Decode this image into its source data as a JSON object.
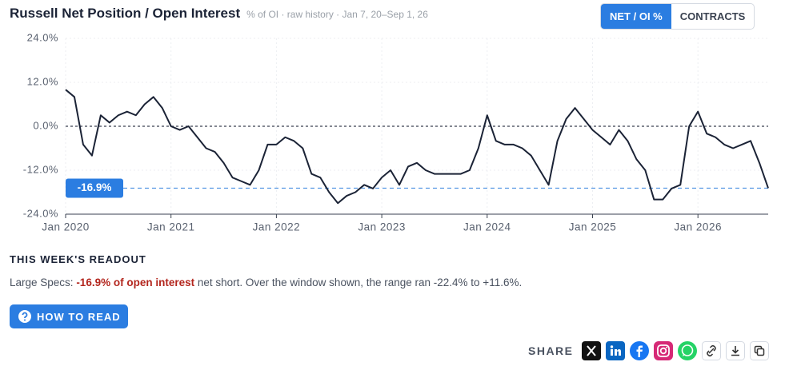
{
  "header": {
    "title": "Russell Net Position / Open Interest",
    "subtitle": "% of OI · raw history · Jan 7, 20–Sep 1, 26",
    "toggles": [
      "NET / OI %",
      "CONTRACTS"
    ]
  },
  "chart_data": {
    "type": "line",
    "color": "#1b2336",
    "grid": true,
    "x": [
      "2020-01",
      "2020-02",
      "2020-03",
      "2020-04",
      "2020-05",
      "2020-06",
      "2020-07",
      "2020-08",
      "2020-09",
      "2020-10",
      "2020-11",
      "2020-12",
      "2021-01",
      "2021-02",
      "2021-03",
      "2021-04",
      "2021-05",
      "2021-06",
      "2021-07",
      "2021-08",
      "2021-09",
      "2021-10",
      "2021-11",
      "2021-12",
      "2022-01",
      "2022-02",
      "2022-03",
      "2022-04",
      "2022-05",
      "2022-06",
      "2022-07",
      "2022-08",
      "2022-09",
      "2022-10",
      "2022-11",
      "2022-12",
      "2023-01",
      "2023-02",
      "2023-03",
      "2023-04",
      "2023-05",
      "2023-06",
      "2023-07",
      "2023-08",
      "2023-09",
      "2023-10",
      "2023-11",
      "2023-12",
      "2024-01",
      "2024-02",
      "2024-03",
      "2024-04",
      "2024-05",
      "2024-06",
      "2024-07",
      "2024-08",
      "2024-09",
      "2024-10",
      "2024-11",
      "2024-12",
      "2025-01",
      "2025-02",
      "2025-03",
      "2025-04",
      "2025-05",
      "2025-06",
      "2025-07",
      "2025-08",
      "2025-09",
      "2025-10",
      "2025-11",
      "2025-12",
      "2026-01",
      "2026-02",
      "2026-03",
      "2026-04",
      "2026-05",
      "2026-06",
      "2026-07",
      "2026-08",
      "2026-09"
    ],
    "values": [
      10,
      8,
      -5,
      -8,
      3,
      1,
      3,
      4,
      3,
      6,
      8,
      5,
      0,
      -1,
      0,
      -3,
      -6,
      -7,
      -10,
      -14,
      -15,
      -16,
      -12,
      -5,
      -5,
      -3,
      -4,
      -6,
      -13,
      -14,
      -18,
      -21,
      -19,
      -18,
      -16,
      -17,
      -14,
      -12,
      -16,
      -11,
      -10,
      -12,
      -13,
      -13,
      -13,
      -13,
      -12,
      -6,
      3,
      -4,
      -5,
      -5,
      -6,
      -8,
      -12,
      -16,
      -4,
      2,
      5,
      2,
      -1,
      -3,
      -5,
      -1,
      -4,
      -9,
      -12,
      -20,
      -20,
      -17,
      -16,
      0,
      4,
      -2,
      -3,
      -5,
      -6,
      -5,
      -4,
      -10,
      -16.9
    ],
    "xlim": [
      "2020-01",
      "2026-09"
    ],
    "xticks": [
      {
        "value": "2020-01",
        "label": "Jan 2020"
      },
      {
        "value": "2021-01",
        "label": "Jan 2021"
      },
      {
        "value": "2022-01",
        "label": "Jan 2022"
      },
      {
        "value": "2023-01",
        "label": "Jan 2023"
      },
      {
        "value": "2024-01",
        "label": "Jan 2024"
      },
      {
        "value": "2025-01",
        "label": "Jan 2025"
      },
      {
        "value": "2026-01",
        "label": "Jan 2026"
      }
    ],
    "ylim": [
      -24,
      24
    ],
    "yticks": [
      {
        "value": -24,
        "label": "-24.0%"
      },
      {
        "value": -12,
        "label": "-12.0%"
      },
      {
        "value": 0,
        "label": "0.0%"
      },
      {
        "value": 12,
        "label": "12.0%"
      },
      {
        "value": 24,
        "label": "24.0%"
      }
    ],
    "reference_lines": [
      {
        "value": 0
      },
      {
        "value": -16.9,
        "label": "-16.9%"
      }
    ]
  },
  "readout": {
    "heading": "THIS WEEK'S READOUT",
    "lead": "Large Specs: ",
    "highlight": "-16.9% of open interest",
    "rest": " net short. Over the window shown, the range ran -22.4% to +11.6%."
  },
  "help_button": "HOW TO READ",
  "share": {
    "label": "SHARE"
  }
}
